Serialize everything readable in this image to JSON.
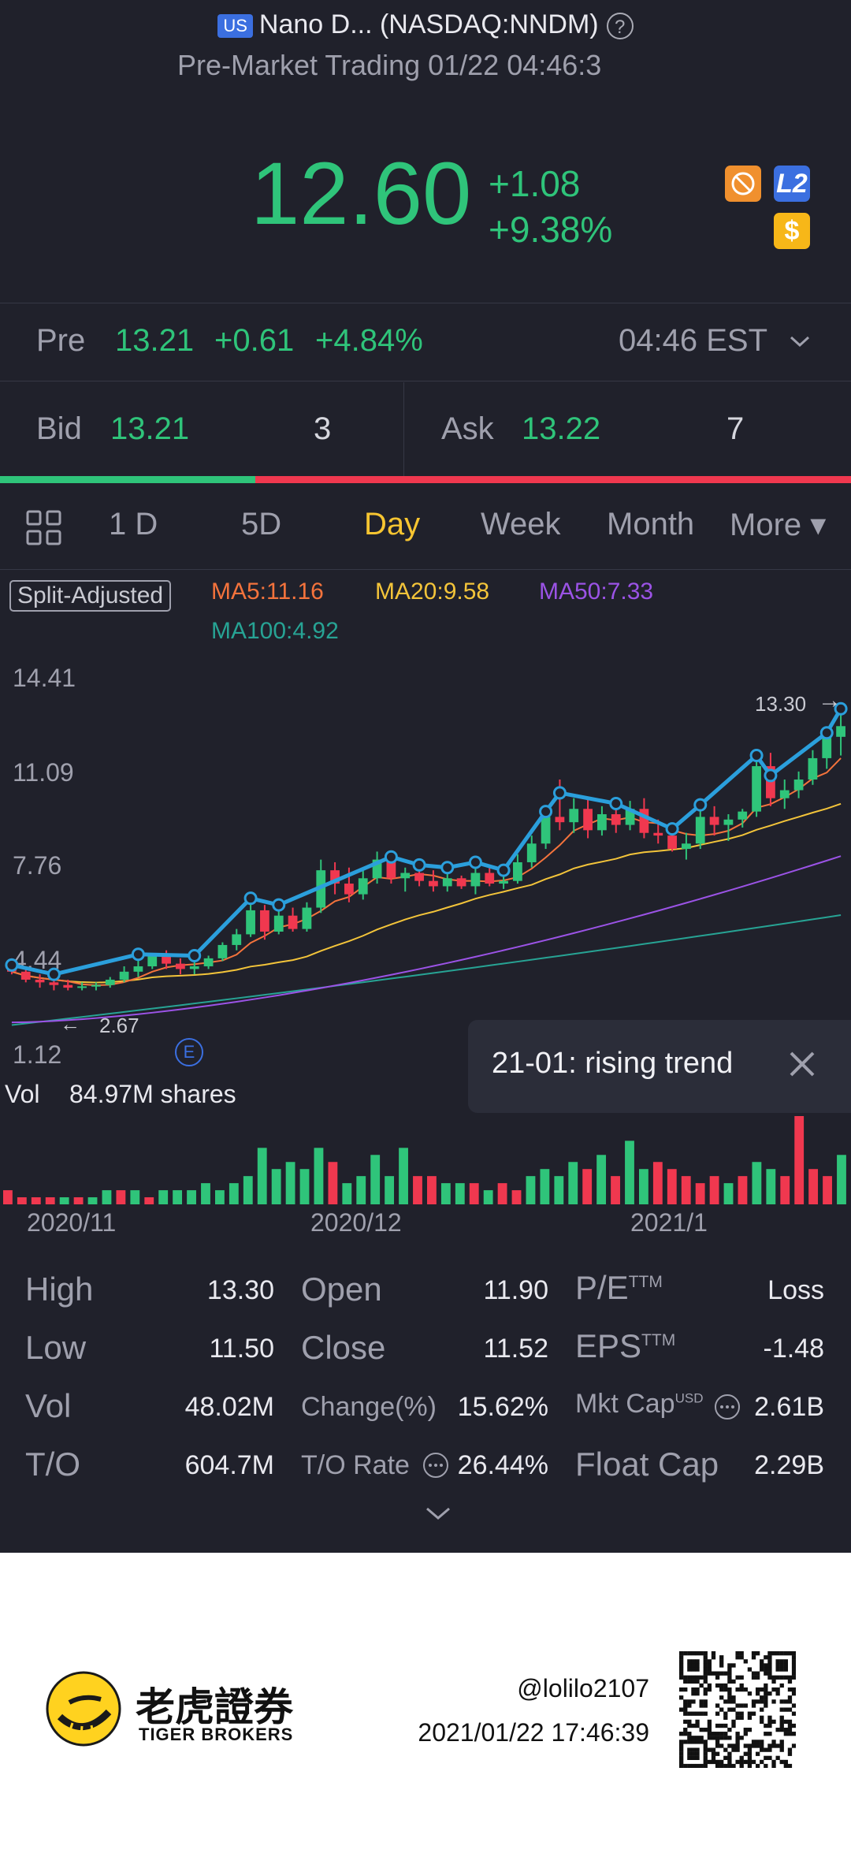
{
  "header": {
    "market_badge": "US",
    "title": "Nano D... (NASDAQ:NNDM)",
    "subtitle": "Pre-Market Trading 01/22 04:46:3"
  },
  "quote": {
    "price": "12.60",
    "change": "+1.08",
    "change_pct": "+9.38%",
    "icons": [
      "no-shorting-icon",
      "level2-icon",
      "dollar-icon"
    ],
    "l2_label": "L2",
    "dollar_label": "$"
  },
  "premarket": {
    "label": "Pre",
    "price": "13.21",
    "change": "+0.61",
    "change_pct": "+4.84%",
    "time": "04:46 EST"
  },
  "bidask": {
    "bid_label": "Bid",
    "bid_price": "13.21",
    "bid_size": "3",
    "ask_label": "Ask",
    "ask_price": "13.22",
    "ask_size": "7",
    "bid_ratio": 0.3
  },
  "tabs": [
    {
      "label": "1 D",
      "active": false
    },
    {
      "label": "5D",
      "active": false
    },
    {
      "label": "Day",
      "active": true
    },
    {
      "label": "Week",
      "active": false
    },
    {
      "label": "Month",
      "active": false
    },
    {
      "label": "More ▾",
      "active": false
    }
  ],
  "indicators": {
    "split_adjusted": "Split-Adjusted",
    "ma5": "MA5:11.16",
    "ma20": "MA20:9.58",
    "ma50": "MA50:7.33",
    "ma100": "MA100:4.92"
  },
  "chart_data": {
    "type": "candlestick",
    "y_axis_ticks": [
      "14.41",
      "11.09",
      "7.76",
      "4.44",
      "1.12"
    ],
    "ylim": [
      1.12,
      14.41
    ],
    "max_marker": "13.30",
    "min_marker": "2.67",
    "event_marker": "E",
    "x_axis_labels": [
      "2020/11",
      "2020/12",
      "2021/1"
    ],
    "colors": {
      "up": "#2fc47a",
      "down": "#f0384f",
      "ma5": "#f4733c",
      "ma20": "#f3c43a",
      "ma50": "#9b53e6",
      "ma100": "#27a394",
      "trend": "#2b9fdc"
    },
    "candles": [
      [
        3.6,
        3.9,
        3.3,
        3.4
      ],
      [
        3.4,
        3.5,
        3.0,
        3.1
      ],
      [
        3.1,
        3.3,
        2.8,
        3.0
      ],
      [
        3.0,
        3.1,
        2.7,
        2.9
      ],
      [
        2.9,
        3.1,
        2.7,
        2.8
      ],
      [
        2.8,
        3.0,
        2.7,
        2.85
      ],
      [
        2.85,
        3.0,
        2.7,
        2.9
      ],
      [
        2.9,
        3.2,
        2.8,
        3.1
      ],
      [
        3.1,
        3.6,
        3.0,
        3.4
      ],
      [
        3.4,
        3.9,
        3.2,
        3.6
      ],
      [
        3.6,
        4.1,
        3.5,
        4.0
      ],
      [
        4.0,
        4.2,
        3.5,
        3.7
      ],
      [
        3.7,
        3.9,
        3.3,
        3.5
      ],
      [
        3.5,
        3.8,
        3.3,
        3.6
      ],
      [
        3.6,
        4.0,
        3.5,
        3.9
      ],
      [
        3.9,
        4.5,
        3.8,
        4.4
      ],
      [
        4.4,
        5.0,
        4.2,
        4.8
      ],
      [
        4.8,
        6.0,
        4.7,
        5.7
      ],
      [
        5.7,
        5.9,
        4.6,
        4.9
      ],
      [
        4.9,
        5.7,
        4.8,
        5.5
      ],
      [
        5.5,
        5.8,
        4.9,
        5.0
      ],
      [
        5.0,
        6.0,
        4.9,
        5.8
      ],
      [
        5.8,
        7.6,
        5.6,
        7.2
      ],
      [
        7.2,
        7.5,
        6.3,
        6.7
      ],
      [
        6.7,
        7.3,
        6.0,
        6.3
      ],
      [
        6.3,
        7.2,
        6.1,
        6.9
      ],
      [
        6.9,
        7.9,
        6.7,
        7.6
      ],
      [
        7.6,
        7.9,
        6.7,
        6.9
      ],
      [
        6.9,
        7.3,
        6.4,
        7.1
      ],
      [
        7.1,
        7.4,
        6.6,
        6.8
      ],
      [
        6.8,
        7.2,
        6.4,
        6.6
      ],
      [
        6.6,
        7.1,
        6.4,
        6.9
      ],
      [
        6.9,
        7.0,
        6.5,
        6.6
      ],
      [
        6.6,
        7.3,
        6.3,
        7.1
      ],
      [
        7.1,
        7.3,
        6.6,
        6.7
      ],
      [
        6.7,
        7.0,
        6.5,
        6.8
      ],
      [
        6.8,
        7.8,
        6.7,
        7.5
      ],
      [
        7.5,
        8.5,
        7.3,
        8.2
      ],
      [
        8.2,
        9.6,
        8.0,
        9.2
      ],
      [
        9.2,
        10.6,
        8.7,
        9.0
      ],
      [
        9.0,
        9.9,
        8.6,
        9.5
      ],
      [
        9.5,
        9.9,
        8.4,
        8.7
      ],
      [
        8.7,
        9.6,
        8.5,
        9.3
      ],
      [
        9.3,
        9.9,
        8.6,
        8.9
      ],
      [
        8.9,
        9.8,
        8.7,
        9.5
      ],
      [
        9.5,
        9.9,
        8.4,
        8.6
      ],
      [
        8.6,
        9.1,
        8.2,
        8.5
      ],
      [
        8.5,
        8.9,
        7.9,
        8.0
      ],
      [
        8.0,
        8.6,
        7.6,
        8.2
      ],
      [
        8.2,
        9.5,
        8.0,
        9.2
      ],
      [
        9.2,
        9.6,
        8.5,
        8.9
      ],
      [
        8.9,
        9.3,
        8.3,
        9.1
      ],
      [
        9.1,
        9.5,
        8.8,
        9.4
      ],
      [
        9.4,
        11.3,
        9.2,
        11.1
      ],
      [
        11.1,
        11.6,
        9.6,
        9.9
      ],
      [
        9.9,
        10.6,
        9.5,
        10.2
      ],
      [
        10.2,
        10.9,
        9.9,
        10.6
      ],
      [
        10.6,
        11.7,
        10.4,
        11.4
      ],
      [
        11.4,
        12.5,
        11.0,
        12.2
      ],
      [
        12.2,
        13.3,
        11.5,
        12.6
      ]
    ],
    "volume_label": "Vol",
    "volume_value": "84.97M shares",
    "volumes": [
      [
        0.2,
        0
      ],
      [
        0.1,
        0
      ],
      [
        0.1,
        0
      ],
      [
        0.1,
        0
      ],
      [
        0.1,
        1
      ],
      [
        0.1,
        0
      ],
      [
        0.1,
        1
      ],
      [
        0.2,
        1
      ],
      [
        0.2,
        0
      ],
      [
        0.2,
        1
      ],
      [
        0.1,
        0
      ],
      [
        0.2,
        1
      ],
      [
        0.2,
        1
      ],
      [
        0.2,
        1
      ],
      [
        0.3,
        1
      ],
      [
        0.2,
        1
      ],
      [
        0.3,
        1
      ],
      [
        0.4,
        1
      ],
      [
        0.8,
        1
      ],
      [
        0.5,
        1
      ],
      [
        0.6,
        1
      ],
      [
        0.5,
        1
      ],
      [
        0.8,
        1
      ],
      [
        0.6,
        0
      ],
      [
        0.3,
        1
      ],
      [
        0.4,
        1
      ],
      [
        0.7,
        1
      ],
      [
        0.4,
        1
      ],
      [
        0.8,
        1
      ],
      [
        0.4,
        0
      ],
      [
        0.4,
        0
      ],
      [
        0.3,
        1
      ],
      [
        0.3,
        1
      ],
      [
        0.3,
        0
      ],
      [
        0.2,
        1
      ],
      [
        0.3,
        0
      ],
      [
        0.2,
        0
      ],
      [
        0.4,
        1
      ],
      [
        0.5,
        1
      ],
      [
        0.4,
        1
      ],
      [
        0.6,
        1
      ],
      [
        0.5,
        0
      ],
      [
        0.7,
        1
      ],
      [
        0.4,
        0
      ],
      [
        0.9,
        1
      ],
      [
        0.5,
        1
      ],
      [
        0.6,
        0
      ],
      [
        0.5,
        0
      ],
      [
        0.4,
        0
      ],
      [
        0.3,
        0
      ],
      [
        0.4,
        0
      ],
      [
        0.3,
        1
      ],
      [
        0.4,
        0
      ],
      [
        0.6,
        1
      ],
      [
        0.5,
        1
      ],
      [
        0.4,
        0
      ],
      [
        1.25,
        0
      ],
      [
        0.5,
        0
      ],
      [
        0.4,
        0
      ],
      [
        0.7,
        1
      ]
    ]
  },
  "tooltip": {
    "text": "21-01: rising trend"
  },
  "stats": {
    "high_label": "High",
    "high": "13.30",
    "open_label": "Open",
    "open": "11.90",
    "pe_label": "P/E",
    "pe_sup": "TTM",
    "pe": "Loss",
    "low_label": "Low",
    "low": "11.50",
    "close_label": "Close",
    "close": "11.52",
    "eps_label": "EPS",
    "eps_sup": "TTM",
    "eps": "-1.48",
    "vol_label": "Vol",
    "vol": "48.02M",
    "changepct_label": "Change(%)",
    "changepct": "15.62%",
    "mktcap_label": "Mkt Cap",
    "mktcap_sup": "USD",
    "mktcap": "2.61B",
    "to_label": "T/O",
    "to": "604.7M",
    "torate_label": "T/O Rate",
    "torate": "26.44%",
    "floatcap_label": "Float Cap",
    "floatcap": "2.29B"
  },
  "footer": {
    "brand_cn": "老虎證券",
    "brand_en": "TIGER BROKERS",
    "handle": "@lolilo2107",
    "timestamp": "2021/01/22 17:46:39"
  }
}
